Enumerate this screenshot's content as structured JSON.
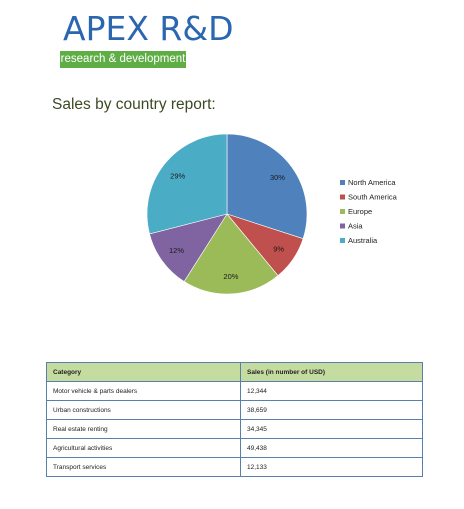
{
  "logo": {
    "top_text": "APEX R&D",
    "bottom_text": "research & development",
    "colors": {
      "blue": "#2a67b0",
      "green": "#5fae45"
    }
  },
  "report": {
    "title": "Sales by country report:"
  },
  "chart_data": {
    "type": "pie",
    "title": "",
    "labels": [
      "North America",
      "South America",
      "Europe",
      "Asia",
      "Australia"
    ],
    "values": [
      30,
      9,
      20,
      12,
      29
    ],
    "data_labels": [
      "30%",
      "9%",
      "20%",
      "12%",
      "29%"
    ],
    "colors": [
      "#4f81bd",
      "#c0504d",
      "#9bbb59",
      "#8064a2",
      "#4bacc6"
    ],
    "legend": "right"
  },
  "table": {
    "headers": [
      "Category",
      "Sales (in number of USD)"
    ],
    "rows": [
      [
        "Motor vehicle & parts dealers",
        "12,344"
      ],
      [
        "Urban constructions",
        "38,659"
      ],
      [
        "Real estate renting",
        "34,345"
      ],
      [
        "Agricultural activities",
        "49,438"
      ],
      [
        "Transport services",
        "12,133"
      ]
    ],
    "colors": {
      "header_bg": "#c5dca0",
      "border": "#5a7fa8"
    }
  }
}
